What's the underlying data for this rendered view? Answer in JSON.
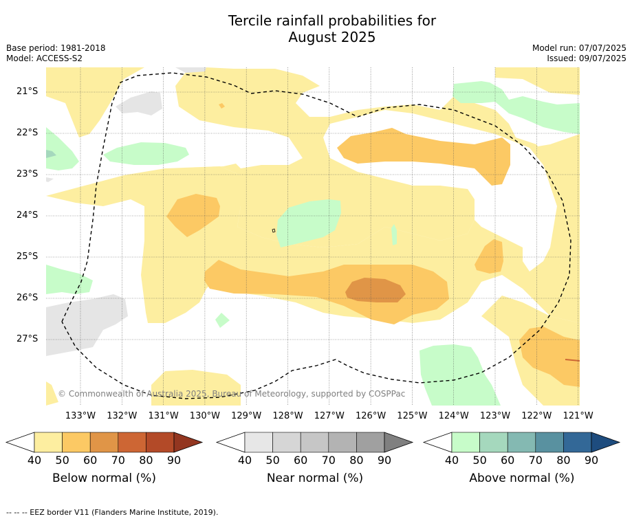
{
  "title_line1": "Tercile rainfall probabilities for",
  "title_line2": "August 2025",
  "base_period": "Base period: 1981-2018",
  "model": "Model: ACCESS-S2",
  "model_run": "Model run: 07/07/2025",
  "issued": "Issued: 09/07/2025",
  "copyright": "© Commonwealth of Australia 2025, Bureau of Meteorology, supported by COSPPac",
  "footer": "--  --  -- EEZ border V11 (Flanders Marine Institute, 2019).",
  "lat_labels": [
    "21°S",
    "22°S",
    "23°S",
    "24°S",
    "25°S",
    "26°S",
    "27°S"
  ],
  "lon_labels": [
    "133°W",
    "132°W",
    "131°W",
    "130°W",
    "129°W",
    "128°W",
    "127°W",
    "126°W",
    "125°W",
    "124°W",
    "123°W",
    "122°W",
    "121°W"
  ],
  "colorbars": [
    {
      "title": "Below normal (%)",
      "ticks": [
        "40",
        "50",
        "60",
        "70",
        "80",
        "90"
      ],
      "colors": [
        "#fdeea0",
        "#fcc964",
        "#e09547",
        "#cd6634",
        "#b34a28",
        "#933620"
      ]
    },
    {
      "title": "Near normal (%)",
      "ticks": [
        "40",
        "50",
        "60",
        "70",
        "80",
        "90"
      ],
      "colors": [
        "#e7e7e7",
        "#d6d6d6",
        "#c6c6c6",
        "#b3b3b3",
        "#a0a0a0",
        "#808080"
      ]
    },
    {
      "title": "Above normal (%)",
      "ticks": [
        "40",
        "50",
        "60",
        "70",
        "80",
        "90"
      ],
      "colors": [
        "#c7fcc9",
        "#a5d8bd",
        "#84b9b2",
        "#5991a0",
        "#336897",
        "#1e4c7e"
      ]
    }
  ],
  "colors": {
    "below_40": "#fdeea0",
    "below_50": "#fcc964",
    "below_60": "#e09547",
    "near_40": "#e5e5e5",
    "above_40": "#c7fcc9",
    "above_50": "#a5d8bd"
  }
}
